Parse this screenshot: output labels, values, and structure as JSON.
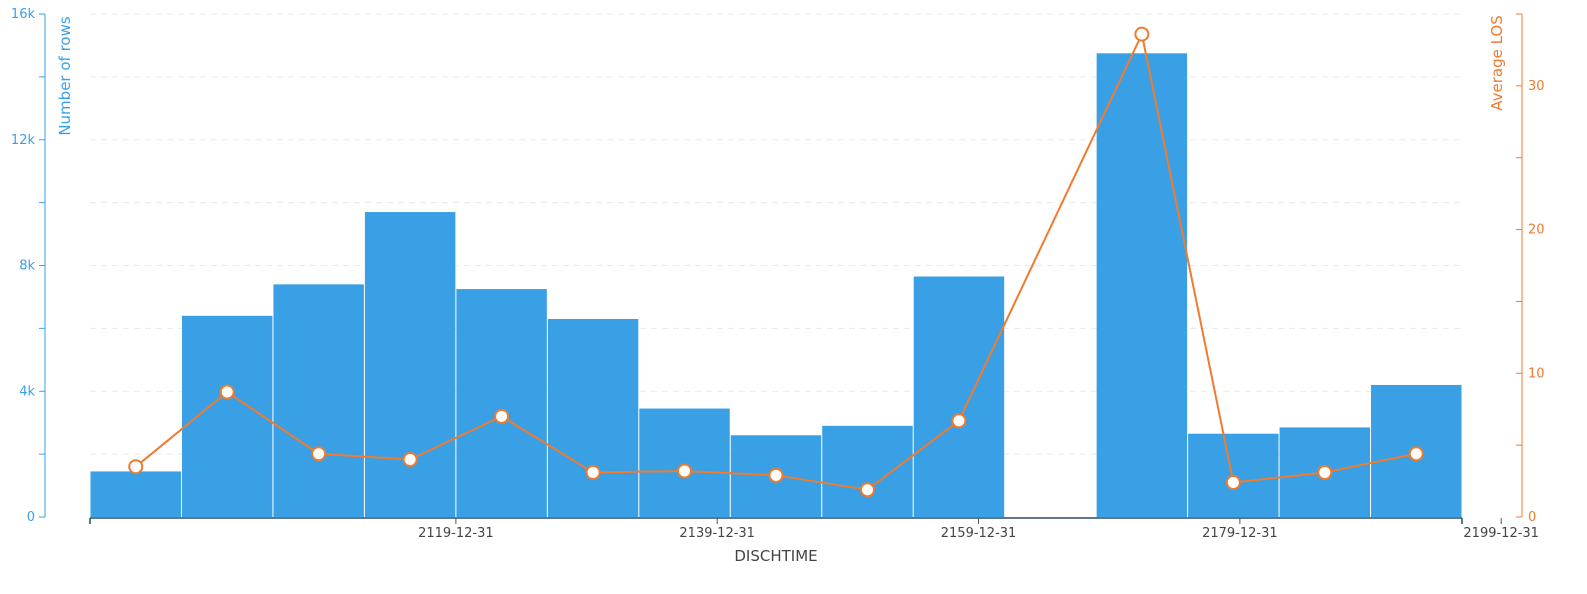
{
  "chart_data": {
    "type": "bar",
    "title": "",
    "xlabel": "DISCHTIME",
    "x_tick_labels": [
      "2119-12-31",
      "2139-12-31",
      "2159-12-31",
      "2179-12-31",
      "2199-12-31"
    ],
    "x_tick_positions_year": [
      2120,
      2140,
      2160,
      2180,
      2200
    ],
    "bin_width_years": 7,
    "bin_start_year": 2092,
    "bin_count": 15,
    "x_range_years": [
      2092,
      2197
    ],
    "grid": true,
    "legend": "none",
    "y_left": {
      "label": "Number of rows",
      "range": [
        0,
        16000
      ],
      "ticks": [
        0,
        4000,
        8000,
        12000,
        16000
      ],
      "tick_labels": [
        "0",
        "4k",
        "8k",
        "12k",
        "16k"
      ],
      "color": "#3aa0e6"
    },
    "y_right": {
      "label": "Average LOS",
      "range": [
        0,
        35
      ],
      "ticks": [
        0,
        10,
        20,
        30
      ],
      "tick_labels": [
        "0",
        "10",
        "20",
        "30"
      ],
      "color": "#f07a2e"
    },
    "series": [
      {
        "type": "bar",
        "axis": "left",
        "color": "#3aa0e6",
        "values": [
          1450,
          6400,
          7400,
          9700,
          7250,
          6300,
          3450,
          2600,
          2900,
          7650,
          0,
          14750,
          2650,
          2850,
          4200
        ]
      },
      {
        "type": "line",
        "axis": "right",
        "color": "#f07a2e",
        "values": [
          3.5,
          8.7,
          4.4,
          4.0,
          7.0,
          3.1,
          3.2,
          2.9,
          1.9,
          6.7,
          null,
          33.6,
          2.4,
          3.1,
          4.4
        ]
      }
    ]
  }
}
